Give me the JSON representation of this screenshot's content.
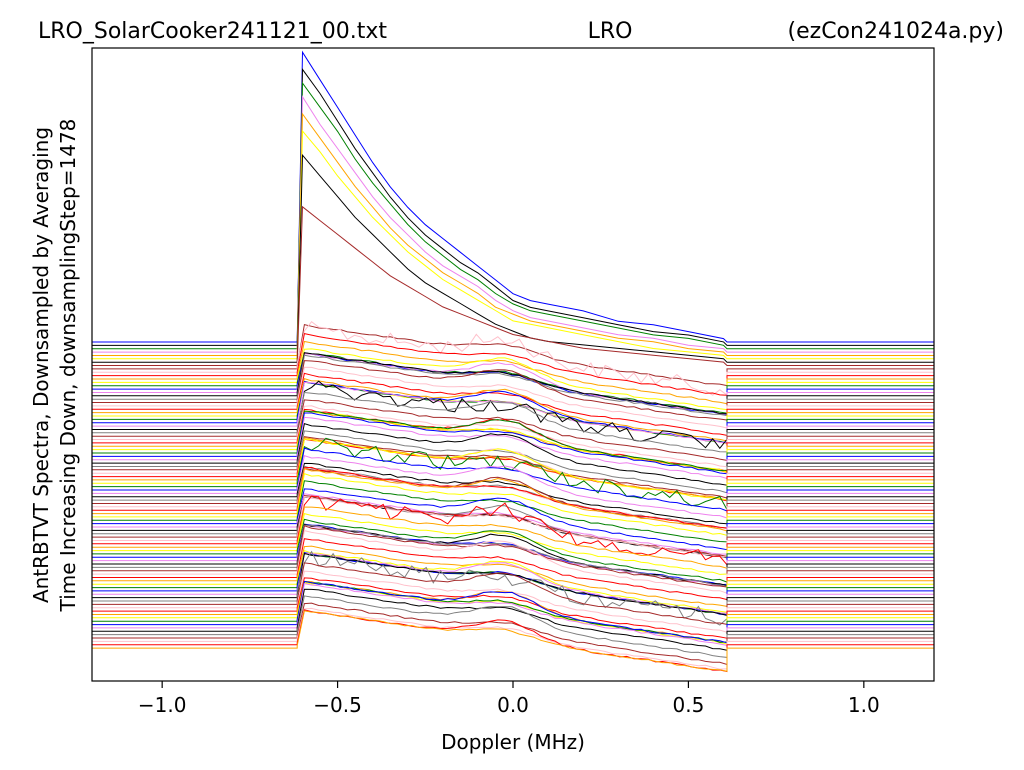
{
  "chart_data": {
    "type": "line",
    "title_left": "LRO_SolarCooker241121_00.txt",
    "title_center": "LRO",
    "title_right": "(ezCon241024a.py)",
    "xlabel": "Doppler (MHz)",
    "ylabel_line1": "AntRBTVT Spectra, Downsampled by Averaging",
    "ylabel_line2": "Time Increasing Down, downsamplingStep=1478",
    "xlim": [
      -1.2,
      1.2
    ],
    "x_ticks": [
      -1.0,
      -0.5,
      0.0,
      0.5,
      1.0
    ],
    "x_tick_labels": [
      "−1.0",
      "−0.5",
      "0.0",
      "0.5",
      "1.0"
    ],
    "y_ticks_shown": false,
    "grid": false,
    "legend": "none",
    "band_edges_mhz": [
      -0.615,
      0.61
    ],
    "trace_count": 92,
    "trace_spacing_norm": 0.01,
    "outside_band_value_norm": 0.0,
    "series_colors": [
      "#ff0000",
      "#ffa500",
      "#ffff00",
      "#008000",
      "#0000ff",
      "#ee82ee",
      "#000000",
      "#808080",
      "#a52a2a",
      "#ffc0cb"
    ],
    "early_traces": [
      {
        "index": 0,
        "color": "#0000ff",
        "x": [
          -0.615,
          -0.6,
          -0.55,
          -0.5,
          -0.45,
          -0.4,
          -0.35,
          -0.3,
          -0.25,
          -0.2,
          -0.15,
          -0.1,
          -0.05,
          0.0,
          0.05,
          0.1,
          0.2,
          0.3,
          0.4,
          0.5,
          0.6
        ],
        "y": [
          0.0,
          0.84,
          0.76,
          0.68,
          0.6,
          0.52,
          0.45,
          0.39,
          0.34,
          0.3,
          0.26,
          0.22,
          0.18,
          0.14,
          0.12,
          0.11,
          0.09,
          0.06,
          0.05,
          0.03,
          0.01
        ]
      },
      {
        "index": 1,
        "color": "#000000",
        "x": [
          -0.615,
          -0.6,
          -0.55,
          -0.5,
          -0.45,
          -0.4,
          -0.35,
          -0.3,
          -0.25,
          -0.2,
          -0.15,
          -0.1,
          -0.05,
          0.0,
          0.05,
          0.1,
          0.2,
          0.3,
          0.4,
          0.5,
          0.6
        ],
        "y": [
          0.0,
          0.8,
          0.73,
          0.65,
          0.57,
          0.5,
          0.43,
          0.37,
          0.32,
          0.28,
          0.24,
          0.21,
          0.17,
          0.13,
          0.11,
          0.1,
          0.08,
          0.06,
          0.04,
          0.03,
          0.01
        ]
      },
      {
        "index": 2,
        "color": "#008000",
        "x": [
          -0.615,
          -0.6,
          -0.55,
          -0.5,
          -0.45,
          -0.4,
          -0.35,
          -0.3,
          -0.25,
          -0.2,
          -0.15,
          -0.1,
          -0.05,
          0.0,
          0.05,
          0.1,
          0.2,
          0.3,
          0.4,
          0.5,
          0.6
        ],
        "y": [
          0.0,
          0.77,
          0.7,
          0.63,
          0.55,
          0.48,
          0.42,
          0.36,
          0.31,
          0.27,
          0.23,
          0.2,
          0.16,
          0.13,
          0.11,
          0.1,
          0.08,
          0.06,
          0.04,
          0.03,
          0.01
        ]
      },
      {
        "index": 3,
        "color": "#ee82ee",
        "x": [
          -0.615,
          -0.6,
          -0.55,
          -0.5,
          -0.45,
          -0.4,
          -0.35,
          -0.3,
          -0.25,
          -0.2,
          -0.15,
          -0.1,
          -0.05,
          0.0,
          0.05,
          0.1,
          0.2,
          0.3,
          0.4,
          0.5,
          0.6
        ],
        "y": [
          0.0,
          0.74,
          0.66,
          0.59,
          0.52,
          0.45,
          0.39,
          0.34,
          0.29,
          0.25,
          0.22,
          0.19,
          0.15,
          0.12,
          0.1,
          0.09,
          0.07,
          0.05,
          0.04,
          0.02,
          0.01
        ]
      },
      {
        "index": 4,
        "color": "#ffa500",
        "x": [
          -0.615,
          -0.6,
          -0.55,
          -0.5,
          -0.45,
          -0.4,
          -0.35,
          -0.3,
          -0.25,
          -0.2,
          -0.15,
          -0.1,
          -0.05,
          0.0,
          0.05,
          0.1,
          0.2,
          0.3,
          0.4,
          0.5,
          0.6
        ],
        "y": [
          0.0,
          0.7,
          0.63,
          0.56,
          0.49,
          0.43,
          0.37,
          0.32,
          0.28,
          0.24,
          0.21,
          0.18,
          0.14,
          0.12,
          0.1,
          0.09,
          0.07,
          0.05,
          0.04,
          0.02,
          0.01
        ]
      },
      {
        "index": 5,
        "color": "#ffff00",
        "x": [
          -0.615,
          -0.6,
          -0.55,
          -0.5,
          -0.45,
          -0.4,
          -0.35,
          -0.3,
          -0.25,
          -0.2,
          -0.15,
          -0.1,
          -0.05,
          0.0,
          0.05,
          0.1,
          0.2,
          0.3,
          0.4,
          0.5,
          0.6
        ],
        "y": [
          0.0,
          0.66,
          0.6,
          0.53,
          0.47,
          0.41,
          0.36,
          0.31,
          0.27,
          0.23,
          0.2,
          0.17,
          0.14,
          0.11,
          0.1,
          0.09,
          0.07,
          0.05,
          0.03,
          0.02,
          0.01
        ]
      },
      {
        "index": 6,
        "color": "#000000",
        "x": [
          -0.615,
          -0.6,
          -0.55,
          -0.5,
          -0.45,
          -0.4,
          -0.35,
          -0.3,
          -0.25,
          -0.2,
          -0.15,
          -0.1,
          -0.05,
          0.0,
          0.05,
          0.1,
          0.2,
          0.3,
          0.4,
          0.5,
          0.6
        ],
        "y": [
          0.0,
          0.6,
          0.54,
          0.48,
          0.42,
          0.37,
          0.32,
          0.27,
          0.23,
          0.2,
          0.17,
          0.14,
          0.11,
          0.09,
          0.07,
          0.06,
          0.05,
          0.04,
          0.03,
          0.02,
          0.01
        ]
      },
      {
        "index": 7,
        "color": "#a52a2a",
        "x": [
          -0.615,
          -0.6,
          -0.55,
          -0.5,
          -0.45,
          -0.4,
          -0.35,
          -0.3,
          -0.25,
          -0.2,
          -0.15,
          -0.1,
          -0.05,
          0.0,
          0.05,
          0.1,
          0.2,
          0.3,
          0.4,
          0.5,
          0.6
        ],
        "y": [
          0.0,
          0.46,
          0.42,
          0.38,
          0.34,
          0.3,
          0.26,
          0.23,
          0.2,
          0.17,
          0.15,
          0.13,
          0.11,
          0.09,
          0.08,
          0.07,
          0.05,
          0.04,
          0.03,
          0.02,
          0.01
        ]
      }
    ]
  }
}
